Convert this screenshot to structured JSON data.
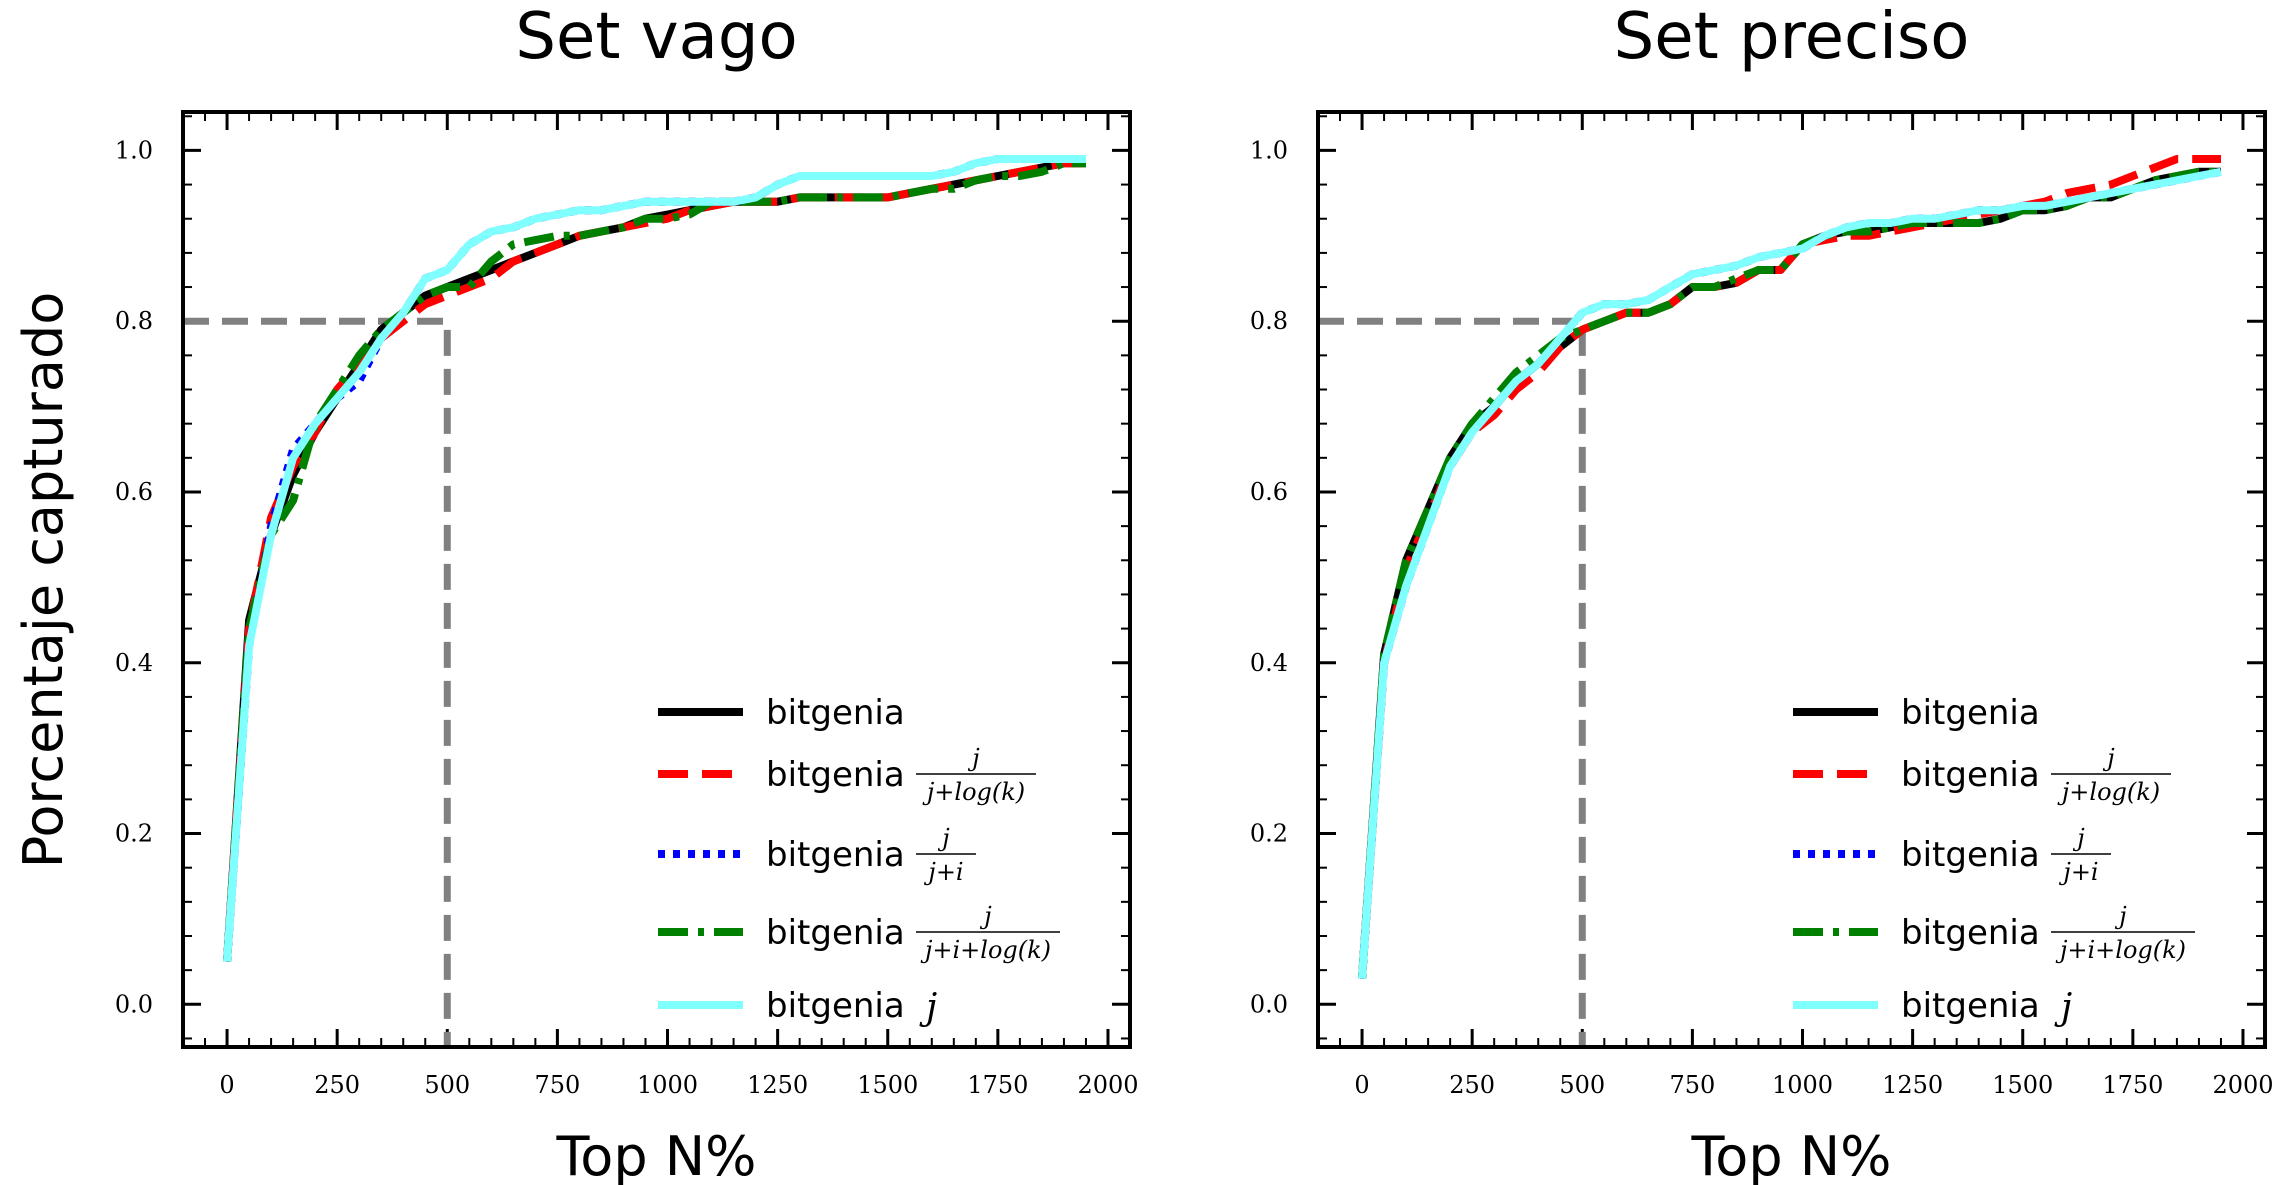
{
  "figure": {
    "ylabel": "Porcentaje capturado"
  },
  "chart_data": [
    {
      "type": "line",
      "title": "Set vago",
      "xlabel": "Top N%",
      "ylabel": "Porcentaje capturado",
      "xlim": [
        -100,
        2050
      ],
      "ylim": [
        -0.05,
        1.045
      ],
      "xticks": [
        0,
        250,
        500,
        750,
        1000,
        1250,
        1500,
        1750,
        2000
      ],
      "xtick_labels": [
        "0",
        "250",
        "500",
        "750",
        "1000",
        "1250",
        "1500",
        "1750",
        "2000"
      ],
      "yticks": [
        0.0,
        0.2,
        0.4,
        0.6,
        0.8,
        1.0
      ],
      "ytick_labels": [
        "0.0",
        "0.2",
        "0.4",
        "0.6",
        "0.8",
        "1.0"
      ],
      "legend_position": "lower-right",
      "reference": {
        "x": 500,
        "y": 0.8
      },
      "series": [
        {
          "name": "bitgenia",
          "math": "",
          "color": "#000000",
          "dash": "solid",
          "x": [
            0,
            50,
            100,
            150,
            200,
            250,
            300,
            350,
            400,
            450,
            500,
            550,
            600,
            650,
            700,
            750,
            800,
            850,
            900,
            950,
            1000,
            1050,
            1100,
            1150,
            1200,
            1250,
            1300,
            1350,
            1400,
            1450,
            1500,
            1550,
            1600,
            1650,
            1700,
            1750,
            1800,
            1850,
            1900,
            1950
          ],
          "y": [
            0.05,
            0.45,
            0.55,
            0.62,
            0.67,
            0.71,
            0.75,
            0.79,
            0.81,
            0.83,
            0.84,
            0.85,
            0.86,
            0.87,
            0.88,
            0.89,
            0.9,
            0.905,
            0.91,
            0.92,
            0.925,
            0.93,
            0.935,
            0.94,
            0.94,
            0.94,
            0.945,
            0.945,
            0.945,
            0.945,
            0.945,
            0.95,
            0.955,
            0.96,
            0.965,
            0.97,
            0.975,
            0.98,
            0.985,
            0.985
          ]
        },
        {
          "name": "bitgenia",
          "math": "j/(j+log(k))",
          "color": "#ff0000",
          "dash": "dashed",
          "x": [
            0,
            50,
            100,
            150,
            200,
            250,
            300,
            350,
            400,
            450,
            500,
            550,
            600,
            650,
            700,
            750,
            800,
            850,
            900,
            950,
            1000,
            1050,
            1100,
            1150,
            1200,
            1250,
            1300,
            1350,
            1400,
            1450,
            1500,
            1550,
            1600,
            1650,
            1700,
            1750,
            1800,
            1850,
            1900,
            1950
          ],
          "y": [
            0.05,
            0.44,
            0.57,
            0.63,
            0.67,
            0.72,
            0.75,
            0.78,
            0.8,
            0.82,
            0.83,
            0.84,
            0.85,
            0.87,
            0.88,
            0.89,
            0.9,
            0.905,
            0.91,
            0.915,
            0.92,
            0.93,
            0.935,
            0.94,
            0.94,
            0.94,
            0.945,
            0.945,
            0.945,
            0.945,
            0.945,
            0.95,
            0.955,
            0.96,
            0.965,
            0.97,
            0.975,
            0.98,
            0.985,
            0.985
          ]
        },
        {
          "name": "bitgenia",
          "math": "j/(j+i)",
          "color": "#0000ff",
          "dash": "dotted",
          "x": [
            0,
            50,
            100,
            150,
            200,
            250,
            300,
            350,
            400,
            450,
            500,
            550,
            600,
            650,
            700,
            750,
            800,
            850,
            900,
            950,
            1000,
            1050,
            1100,
            1150,
            1200,
            1250,
            1300,
            1350,
            1400,
            1450,
            1500,
            1550,
            1600,
            1650,
            1700,
            1750,
            1800,
            1850,
            1900,
            1950
          ],
          "y": [
            0.05,
            0.42,
            0.56,
            0.65,
            0.68,
            0.71,
            0.73,
            0.78,
            0.81,
            0.85,
            0.86,
            0.89,
            0.905,
            0.91,
            0.92,
            0.925,
            0.93,
            0.93,
            0.935,
            0.94,
            0.94,
            0.94,
            0.94,
            0.94,
            0.945,
            0.96,
            0.97,
            0.97,
            0.97,
            0.97,
            0.97,
            0.97,
            0.97,
            0.975,
            0.985,
            0.99,
            0.99,
            0.99,
            0.99,
            0.99
          ]
        },
        {
          "name": "bitgenia",
          "math": "j/(j+i+log(k))",
          "color": "#008000",
          "dash": "dashdot",
          "x": [
            0,
            50,
            100,
            150,
            200,
            250,
            300,
            350,
            400,
            450,
            500,
            550,
            600,
            650,
            700,
            750,
            800,
            850,
            900,
            950,
            1000,
            1050,
            1100,
            1150,
            1200,
            1250,
            1300,
            1350,
            1400,
            1450,
            1500,
            1550,
            1600,
            1650,
            1700,
            1750,
            1800,
            1850,
            1900,
            1950
          ],
          "y": [
            0.05,
            0.44,
            0.55,
            0.59,
            0.68,
            0.72,
            0.76,
            0.79,
            0.81,
            0.83,
            0.84,
            0.84,
            0.87,
            0.89,
            0.895,
            0.9,
            0.9,
            0.905,
            0.91,
            0.92,
            0.92,
            0.925,
            0.94,
            0.94,
            0.94,
            0.94,
            0.945,
            0.945,
            0.945,
            0.945,
            0.945,
            0.95,
            0.955,
            0.955,
            0.965,
            0.97,
            0.97,
            0.975,
            0.985,
            0.985
          ]
        },
        {
          "name": "bitgenia",
          "math": "j",
          "color": "#80ffff",
          "dash": "solid",
          "x": [
            0,
            50,
            100,
            150,
            200,
            250,
            300,
            350,
            400,
            450,
            500,
            550,
            600,
            650,
            700,
            750,
            800,
            850,
            900,
            950,
            1000,
            1050,
            1100,
            1150,
            1200,
            1250,
            1300,
            1350,
            1400,
            1450,
            1500,
            1550,
            1600,
            1650,
            1700,
            1750,
            1800,
            1850,
            1900,
            1950
          ],
          "y": [
            0.05,
            0.42,
            0.55,
            0.64,
            0.68,
            0.71,
            0.74,
            0.78,
            0.81,
            0.85,
            0.86,
            0.89,
            0.905,
            0.91,
            0.92,
            0.925,
            0.93,
            0.93,
            0.935,
            0.94,
            0.94,
            0.94,
            0.94,
            0.94,
            0.945,
            0.96,
            0.97,
            0.97,
            0.97,
            0.97,
            0.97,
            0.97,
            0.97,
            0.975,
            0.985,
            0.99,
            0.99,
            0.99,
            0.99,
            0.99
          ]
        }
      ]
    },
    {
      "type": "line",
      "title": "Set preciso",
      "xlabel": "Top N%",
      "ylabel": "",
      "xlim": [
        -100,
        2050
      ],
      "ylim": [
        -0.05,
        1.045
      ],
      "xticks": [
        0,
        250,
        500,
        750,
        1000,
        1250,
        1500,
        1750,
        2000
      ],
      "xtick_labels": [
        "0",
        "250",
        "500",
        "750",
        "1000",
        "1250",
        "1500",
        "1750",
        "2000"
      ],
      "yticks": [
        0.0,
        0.2,
        0.4,
        0.6,
        0.8,
        1.0
      ],
      "ytick_labels": [
        "0.0",
        "0.2",
        "0.4",
        "0.6",
        "0.8",
        "1.0"
      ],
      "legend_position": "lower-right",
      "reference": {
        "x": 500,
        "y": 0.8
      },
      "series": [
        {
          "name": "bitgenia",
          "math": "",
          "color": "#000000",
          "dash": "solid",
          "x": [
            0,
            50,
            100,
            150,
            200,
            250,
            300,
            350,
            400,
            450,
            500,
            550,
            600,
            650,
            700,
            750,
            800,
            850,
            900,
            950,
            1000,
            1050,
            1100,
            1150,
            1200,
            1250,
            1300,
            1350,
            1400,
            1450,
            1500,
            1550,
            1600,
            1650,
            1700,
            1750,
            1800,
            1850,
            1900,
            1950
          ],
          "y": [
            0.03,
            0.41,
            0.52,
            0.58,
            0.64,
            0.68,
            0.7,
            0.73,
            0.75,
            0.77,
            0.79,
            0.8,
            0.81,
            0.81,
            0.82,
            0.84,
            0.84,
            0.845,
            0.86,
            0.86,
            0.89,
            0.9,
            0.905,
            0.905,
            0.91,
            0.915,
            0.915,
            0.915,
            0.915,
            0.92,
            0.93,
            0.93,
            0.935,
            0.945,
            0.945,
            0.955,
            0.965,
            0.97,
            0.975,
            0.975
          ]
        },
        {
          "name": "bitgenia",
          "math": "j/(j+log(k))",
          "color": "#ff0000",
          "dash": "dashed",
          "x": [
            0,
            50,
            100,
            150,
            200,
            250,
            300,
            350,
            400,
            450,
            500,
            550,
            600,
            650,
            700,
            750,
            800,
            850,
            900,
            950,
            1000,
            1050,
            1100,
            1150,
            1200,
            1250,
            1300,
            1350,
            1400,
            1450,
            1500,
            1550,
            1600,
            1650,
            1700,
            1750,
            1800,
            1850,
            1900,
            1950
          ],
          "y": [
            0.03,
            0.4,
            0.51,
            0.57,
            0.63,
            0.67,
            0.69,
            0.72,
            0.74,
            0.77,
            0.79,
            0.8,
            0.81,
            0.81,
            0.82,
            0.84,
            0.84,
            0.845,
            0.86,
            0.86,
            0.89,
            0.895,
            0.9,
            0.9,
            0.905,
            0.91,
            0.915,
            0.92,
            0.925,
            0.93,
            0.935,
            0.94,
            0.95,
            0.955,
            0.96,
            0.97,
            0.98,
            0.99,
            0.99,
            0.99
          ]
        },
        {
          "name": "bitgenia",
          "math": "j/(j+i)",
          "color": "#0000ff",
          "dash": "dotted",
          "x": [
            0,
            50,
            100,
            150,
            200,
            250,
            300,
            350,
            400,
            450,
            500,
            550,
            600,
            650,
            700,
            750,
            800,
            850,
            900,
            950,
            1000,
            1050,
            1100,
            1150,
            1200,
            1250,
            1300,
            1350,
            1400,
            1450,
            1500,
            1550,
            1600,
            1650,
            1700,
            1750,
            1800,
            1850,
            1900,
            1950
          ],
          "y": [
            0.03,
            0.4,
            0.49,
            0.56,
            0.63,
            0.67,
            0.7,
            0.73,
            0.75,
            0.78,
            0.81,
            0.82,
            0.82,
            0.825,
            0.84,
            0.855,
            0.86,
            0.865,
            0.875,
            0.88,
            0.885,
            0.9,
            0.91,
            0.915,
            0.915,
            0.92,
            0.92,
            0.925,
            0.93,
            0.93,
            0.935,
            0.935,
            0.94,
            0.945,
            0.95,
            0.955,
            0.96,
            0.965,
            0.97,
            0.975
          ]
        },
        {
          "name": "bitgenia",
          "math": "j/(j+i+log(k))",
          "color": "#008000",
          "dash": "dashdot",
          "x": [
            0,
            50,
            100,
            150,
            200,
            250,
            300,
            350,
            400,
            450,
            500,
            550,
            600,
            650,
            700,
            750,
            800,
            850,
            900,
            950,
            1000,
            1050,
            1100,
            1150,
            1200,
            1250,
            1300,
            1350,
            1400,
            1450,
            1500,
            1550,
            1600,
            1650,
            1700,
            1750,
            1800,
            1850,
            1900,
            1950
          ],
          "y": [
            0.03,
            0.41,
            0.52,
            0.58,
            0.64,
            0.68,
            0.71,
            0.74,
            0.76,
            0.78,
            0.79,
            0.8,
            0.81,
            0.81,
            0.82,
            0.84,
            0.84,
            0.85,
            0.86,
            0.86,
            0.89,
            0.9,
            0.905,
            0.905,
            0.91,
            0.915,
            0.915,
            0.915,
            0.915,
            0.92,
            0.93,
            0.93,
            0.935,
            0.945,
            0.945,
            0.955,
            0.965,
            0.97,
            0.975,
            0.975
          ]
        },
        {
          "name": "bitgenia",
          "math": "j",
          "color": "#80ffff",
          "dash": "solid",
          "x": [
            0,
            50,
            100,
            150,
            200,
            250,
            300,
            350,
            400,
            450,
            500,
            550,
            600,
            650,
            700,
            750,
            800,
            850,
            900,
            950,
            1000,
            1050,
            1100,
            1150,
            1200,
            1250,
            1300,
            1350,
            1400,
            1450,
            1500,
            1550,
            1600,
            1650,
            1700,
            1750,
            1800,
            1850,
            1900,
            1950
          ],
          "y": [
            0.03,
            0.4,
            0.49,
            0.56,
            0.63,
            0.67,
            0.7,
            0.73,
            0.75,
            0.78,
            0.81,
            0.82,
            0.82,
            0.825,
            0.84,
            0.855,
            0.86,
            0.865,
            0.875,
            0.88,
            0.885,
            0.9,
            0.91,
            0.915,
            0.915,
            0.92,
            0.92,
            0.925,
            0.93,
            0.93,
            0.935,
            0.935,
            0.94,
            0.945,
            0.95,
            0.955,
            0.96,
            0.965,
            0.97,
            0.975
          ]
        }
      ]
    }
  ]
}
